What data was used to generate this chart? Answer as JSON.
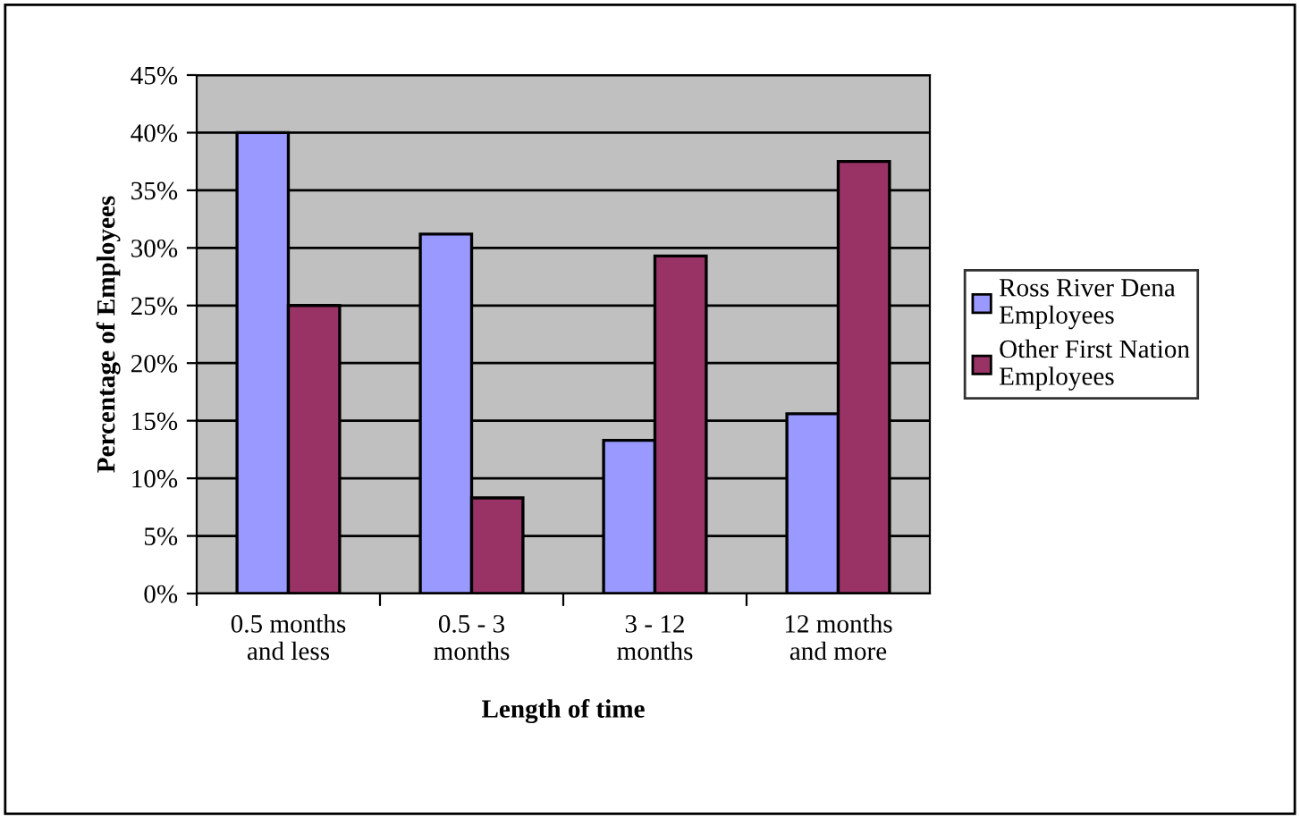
{
  "chart_data": {
    "type": "bar",
    "xlabel": "Length of time",
    "ylabel": "Percentage of Employees",
    "categories": [
      "0.5 months\nand less",
      "0.5 - 3\nmonths",
      "3 - 12\nmonths",
      "12 months\nand more"
    ],
    "series": [
      {
        "name": "Ross River Dena\nEmployees",
        "color": "#9999ff",
        "values": [
          40,
          31.2,
          13.3,
          15.6
        ]
      },
      {
        "name": "Other First Nation\nEmployees",
        "color": "#993366",
        "values": [
          25,
          8.3,
          29.3,
          37.5
        ]
      }
    ],
    "ylim": [
      0,
      45
    ],
    "yticks": [
      {
        "value": 0,
        "label": "0%"
      },
      {
        "value": 5,
        "label": "5%"
      },
      {
        "value": 10,
        "label": "10%"
      },
      {
        "value": 15,
        "label": "15%"
      },
      {
        "value": 20,
        "label": "20%"
      },
      {
        "value": 25,
        "label": "25%"
      },
      {
        "value": 30,
        "label": "30%"
      },
      {
        "value": 35,
        "label": "35%"
      },
      {
        "value": 40,
        "label": "40%"
      },
      {
        "value": 45,
        "label": "45%"
      }
    ],
    "grid": "y",
    "legend": "right"
  }
}
